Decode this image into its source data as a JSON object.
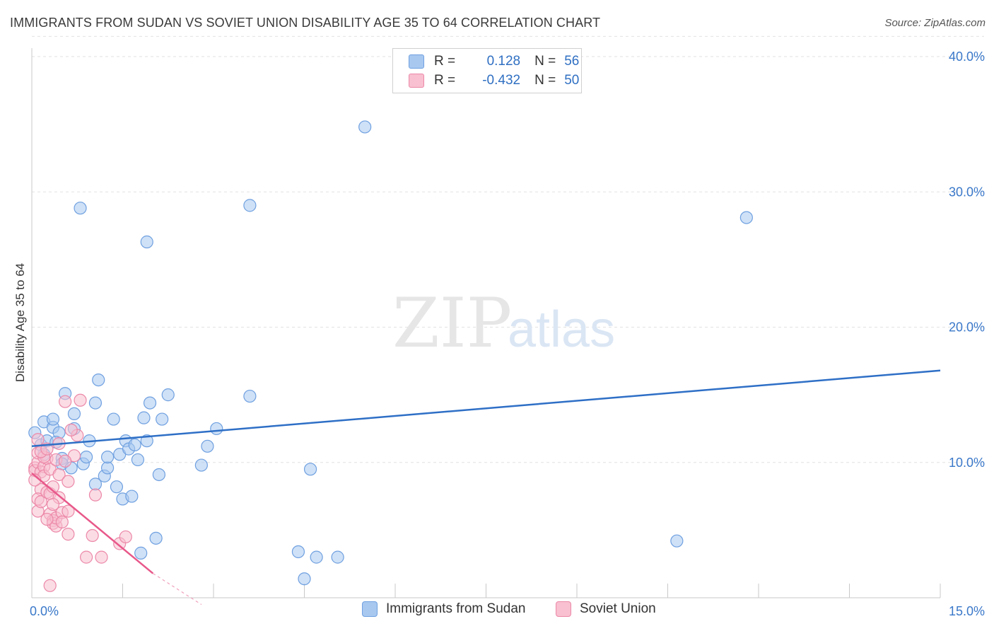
{
  "title": "IMMIGRANTS FROM SUDAN VS SOVIET UNION DISABILITY AGE 35 TO 64 CORRELATION CHART",
  "source": "Source: ZipAtlas.com",
  "watermark": {
    "zip": "ZIP",
    "atlas": "atlas"
  },
  "legend": {
    "rows": [
      {
        "r_label": "R =",
        "r_value": "0.128",
        "n_label": "N =",
        "n_value": "56",
        "color": "#a8c8f0",
        "border": "#6fa0e0"
      },
      {
        "r_label": "R =",
        "r_value": "-0.432",
        "n_label": "N =",
        "n_value": "50",
        "color": "#f8c0d0",
        "border": "#ec88a8"
      }
    ]
  },
  "bottom_legend": {
    "items": [
      {
        "label": "Immigrants from Sudan",
        "color": "#a8c8f0",
        "border": "#6fa0e0"
      },
      {
        "label": "Soviet Union",
        "color": "#f8c0d0",
        "border": "#ec88a8"
      }
    ]
  },
  "chart_data": {
    "type": "scatter",
    "title": "IMMIGRANTS FROM SUDAN VS SOVIET UNION DISABILITY AGE 35 TO 64 CORRELATION CHART",
    "xlabel": "",
    "ylabel": "Disability Age 35 to 64",
    "xlim": [
      0,
      15
    ],
    "ylim": [
      0,
      40
    ],
    "x_tick_labels": [
      "0.0%",
      "15.0%"
    ],
    "y_ticks": [
      10,
      20,
      30,
      40
    ],
    "y_tick_labels": [
      "10.0%",
      "20.0%",
      "30.0%",
      "40.0%"
    ],
    "grid": true,
    "legend_position": "top-center",
    "series": [
      {
        "name": "Immigrants from Sudan",
        "color": "#6fa0e0",
        "fill": "#a8c8f0",
        "trend": {
          "x": [
            0,
            15
          ],
          "y": [
            11.2,
            16.8
          ]
        },
        "points": [
          [
            0.05,
            12.2
          ],
          [
            0.15,
            11.3
          ],
          [
            0.2,
            10.6
          ],
          [
            0.25,
            11.6
          ],
          [
            0.2,
            13.0
          ],
          [
            0.35,
            12.6
          ],
          [
            0.35,
            13.2
          ],
          [
            0.45,
            12.2
          ],
          [
            0.4,
            11.5
          ],
          [
            0.5,
            10.3
          ],
          [
            0.55,
            15.1
          ],
          [
            0.7,
            13.6
          ],
          [
            0.7,
            12.5
          ],
          [
            0.5,
            9.9
          ],
          [
            0.65,
            9.6
          ],
          [
            0.85,
            9.9
          ],
          [
            0.9,
            10.4
          ],
          [
            0.95,
            11.6
          ],
          [
            1.05,
            14.4
          ],
          [
            1.1,
            16.1
          ],
          [
            1.05,
            8.4
          ],
          [
            1.2,
            9.0
          ],
          [
            1.25,
            9.6
          ],
          [
            1.25,
            10.4
          ],
          [
            1.35,
            13.2
          ],
          [
            1.4,
            8.2
          ],
          [
            1.45,
            10.6
          ],
          [
            1.5,
            7.3
          ],
          [
            1.55,
            11.6
          ],
          [
            1.6,
            11.0
          ],
          [
            1.65,
            7.5
          ],
          [
            1.7,
            11.3
          ],
          [
            1.75,
            10.2
          ],
          [
            1.85,
            13.3
          ],
          [
            1.9,
            11.6
          ],
          [
            1.95,
            14.4
          ],
          [
            2.05,
            4.4
          ],
          [
            2.1,
            9.1
          ],
          [
            2.15,
            13.2
          ],
          [
            2.25,
            15.0
          ],
          [
            1.8,
            3.3
          ],
          [
            2.8,
            9.8
          ],
          [
            2.9,
            11.2
          ],
          [
            3.05,
            12.5
          ],
          [
            3.6,
            14.9
          ],
          [
            3.6,
            29.0
          ],
          [
            4.4,
            3.4
          ],
          [
            4.5,
            1.4
          ],
          [
            4.6,
            9.5
          ],
          [
            4.7,
            3.0
          ],
          [
            5.05,
            3.0
          ],
          [
            5.5,
            34.8
          ],
          [
            10.65,
            4.2
          ],
          [
            11.8,
            28.1
          ],
          [
            0.8,
            28.8
          ],
          [
            1.9,
            26.3
          ]
        ]
      },
      {
        "name": "Soviet Union",
        "color": "#ec88a8",
        "fill": "#f8c0d0",
        "trend": {
          "x": [
            0,
            2.0
          ],
          "y": [
            9.2,
            1.8
          ]
        },
        "trend_dashed": {
          "x": [
            2.0,
            2.8
          ],
          "y": [
            1.8,
            -0.5
          ]
        },
        "points": [
          [
            0.05,
            9.6
          ],
          [
            0.05,
            9.4
          ],
          [
            0.1,
            10.0
          ],
          [
            0.1,
            10.7
          ],
          [
            0.1,
            11.7
          ],
          [
            0.15,
            9.3
          ],
          [
            0.15,
            8.0
          ],
          [
            0.1,
            7.3
          ],
          [
            0.1,
            6.4
          ],
          [
            0.15,
            7.1
          ],
          [
            0.2,
            9.7
          ],
          [
            0.2,
            9.0
          ],
          [
            0.25,
            10.3
          ],
          [
            0.25,
            7.8
          ],
          [
            0.3,
            7.7
          ],
          [
            0.3,
            9.5
          ],
          [
            0.3,
            6.2
          ],
          [
            0.35,
            8.2
          ],
          [
            0.35,
            5.7
          ],
          [
            0.35,
            5.5
          ],
          [
            0.4,
            5.3
          ],
          [
            0.4,
            5.9
          ],
          [
            0.45,
            9.1
          ],
          [
            0.45,
            7.4
          ],
          [
            0.5,
            6.3
          ],
          [
            0.5,
            5.6
          ],
          [
            0.55,
            14.5
          ],
          [
            0.6,
            8.6
          ],
          [
            0.6,
            6.4
          ],
          [
            0.6,
            4.7
          ],
          [
            0.7,
            10.5
          ],
          [
            0.75,
            12.0
          ],
          [
            0.65,
            12.4
          ],
          [
            0.8,
            14.6
          ],
          [
            0.9,
            3.0
          ],
          [
            1.0,
            4.6
          ],
          [
            1.05,
            7.6
          ],
          [
            1.15,
            3.0
          ],
          [
            1.45,
            4.0
          ],
          [
            1.55,
            4.5
          ],
          [
            0.3,
            0.9
          ],
          [
            0.2,
            10.4
          ],
          [
            0.15,
            10.8
          ],
          [
            0.25,
            11.0
          ],
          [
            0.05,
            8.7
          ],
          [
            0.4,
            10.2
          ],
          [
            0.55,
            10.1
          ],
          [
            0.35,
            6.9
          ],
          [
            0.25,
            5.8
          ],
          [
            0.45,
            11.4
          ]
        ]
      }
    ]
  }
}
